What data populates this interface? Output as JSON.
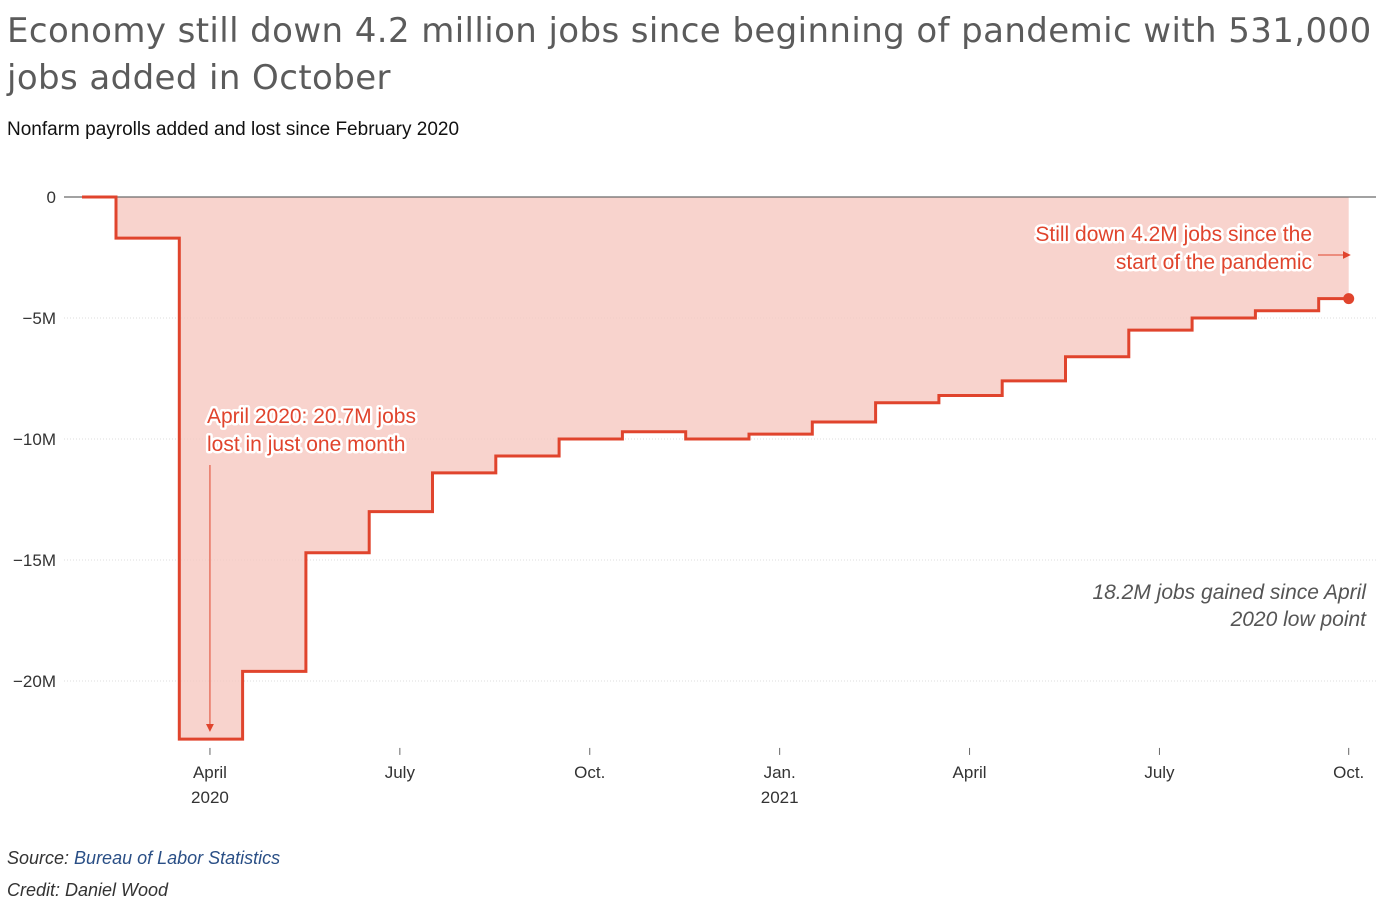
{
  "header": {
    "title": "Economy still down 4.2 million jobs since beginning of pandemic with 531,000 jobs added in October",
    "subtitle": "Nonfarm payrolls added and lost since February 2020"
  },
  "footer": {
    "source_prefix": "Source: ",
    "source_link": "Bureau of Labor Statistics",
    "credit": "Credit: Daniel Wood"
  },
  "colors": {
    "line": "#e0442d",
    "fill": "#f6c8c1",
    "zero_line": "#6b6b6b",
    "grid": "#dddddd",
    "annotation": "#e0442d",
    "note": "#555555"
  },
  "chart_data": {
    "type": "area",
    "step": true,
    "months": [
      "2020-02",
      "2020-03",
      "2020-04",
      "2020-05",
      "2020-06",
      "2020-07",
      "2020-08",
      "2020-09",
      "2020-10",
      "2020-11",
      "2020-12",
      "2021-01",
      "2021-02",
      "2021-03",
      "2021-04",
      "2021-05",
      "2021-06",
      "2021-07",
      "2021-08",
      "2021-09",
      "2021-10"
    ],
    "values": [
      0,
      -1.7,
      -22.4,
      -19.6,
      -14.7,
      -13.0,
      -11.4,
      -10.7,
      -10.0,
      -9.7,
      -10.0,
      -9.8,
      -9.3,
      -8.5,
      -8.2,
      -7.6,
      -6.6,
      -5.5,
      -5.0,
      -4.7,
      -4.2
    ],
    "unit": "millions of jobs",
    "ylim": [
      -22.6,
      0
    ],
    "y_ticks": [
      0,
      -5,
      -10,
      -15,
      -20
    ],
    "y_tick_labels": [
      "0",
      "−5M",
      "−10M",
      "−15M",
      "−20M"
    ],
    "x_ticks": [
      {
        "month": "2020-04",
        "label": "April",
        "sublabel": "2020"
      },
      {
        "month": "2020-07",
        "label": "July",
        "sublabel": ""
      },
      {
        "month": "2020-10",
        "label": "Oct.",
        "sublabel": ""
      },
      {
        "month": "2021-01",
        "label": "Jan.",
        "sublabel": "2021"
      },
      {
        "month": "2021-04",
        "label": "April",
        "sublabel": ""
      },
      {
        "month": "2021-07",
        "label": "July",
        "sublabel": ""
      },
      {
        "month": "2021-10",
        "label": "Oct.",
        "sublabel": ""
      }
    ],
    "grid": true,
    "annotations": [
      {
        "id": "low-point",
        "lines": [
          "April 2020: 20.7M jobs",
          "lost in just one month"
        ]
      },
      {
        "id": "still-down",
        "lines": [
          "Still down 4.2M jobs since the",
          "start of the pandemic"
        ]
      },
      {
        "id": "gained",
        "lines": [
          "18.2M jobs gained since April",
          "2020 low point"
        ]
      }
    ]
  }
}
